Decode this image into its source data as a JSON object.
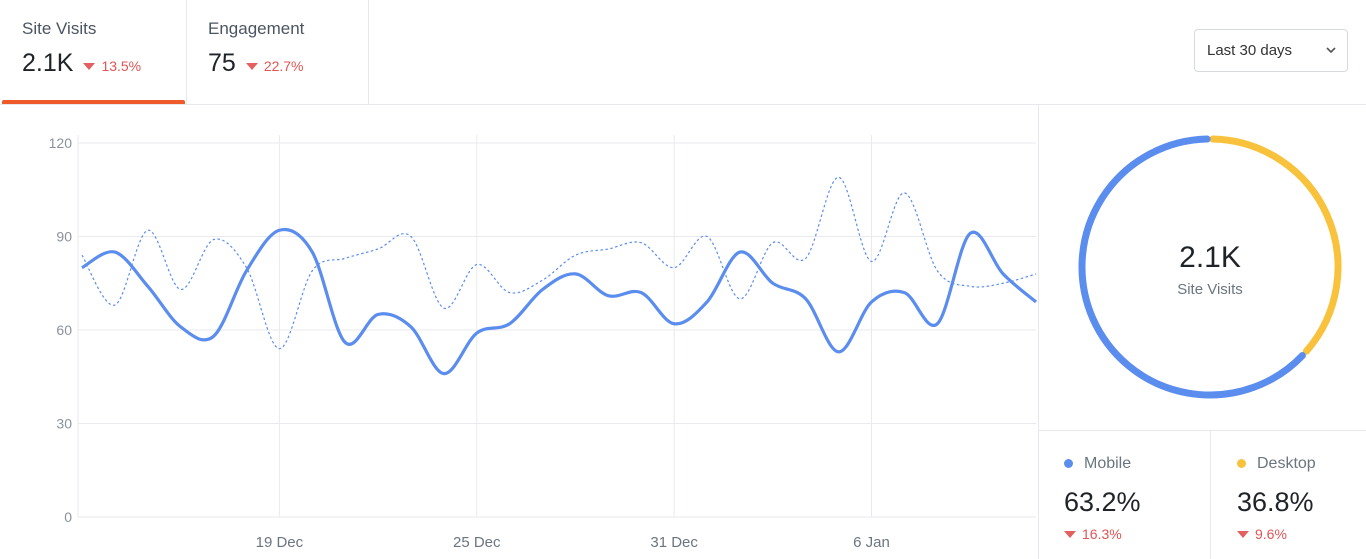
{
  "tabs": [
    {
      "label": "Site Visits",
      "value": "2.1K",
      "change": "13.5%"
    },
    {
      "label": "Engagement",
      "value": "75",
      "change": "22.7%"
    }
  ],
  "range_select": "Last 30 days",
  "chart_data": [
    {
      "type": "line",
      "categories": [
        null,
        null,
        null,
        null,
        null,
        null,
        "19 Dec",
        null,
        null,
        null,
        null,
        null,
        "25 Dec",
        null,
        null,
        null,
        null,
        null,
        "31 Dec",
        null,
        null,
        null,
        null,
        null,
        "6 Jan",
        null,
        null,
        null,
        null,
        null
      ],
      "series": [
        {
          "color": "#5b8def",
          "dashed": false,
          "values": [
            80,
            85,
            74,
            61,
            58,
            79,
            92,
            85,
            56,
            65,
            61,
            46,
            59,
            62,
            73,
            78,
            71,
            72,
            62,
            69,
            85,
            75,
            70,
            53,
            69,
            72,
            62,
            91,
            78,
            69
          ]
        },
        {
          "color": "#5b8def",
          "dashed": true,
          "values": [
            84,
            68,
            92,
            73,
            89,
            80,
            54,
            79,
            83,
            86,
            90,
            67,
            81,
            72,
            76,
            84,
            86,
            88,
            80,
            90,
            70,
            88,
            83,
            109,
            82,
            104,
            79,
            74,
            75,
            78
          ]
        }
      ],
      "ylim": [
        0,
        120
      ],
      "yticks": [
        0,
        30,
        60,
        90,
        120
      ],
      "grid": true
    },
    {
      "type": "donut",
      "center_value": "2.1K",
      "center_label": "Site Visits",
      "categories": [
        "Mobile",
        "Desktop"
      ],
      "values": [
        63.2,
        36.8
      ],
      "value_labels": [
        "63.2%",
        "36.8%"
      ],
      "changes": [
        "16.3%",
        "9.6%"
      ],
      "colors": [
        "#5b8def",
        "#f9c23c"
      ]
    }
  ]
}
